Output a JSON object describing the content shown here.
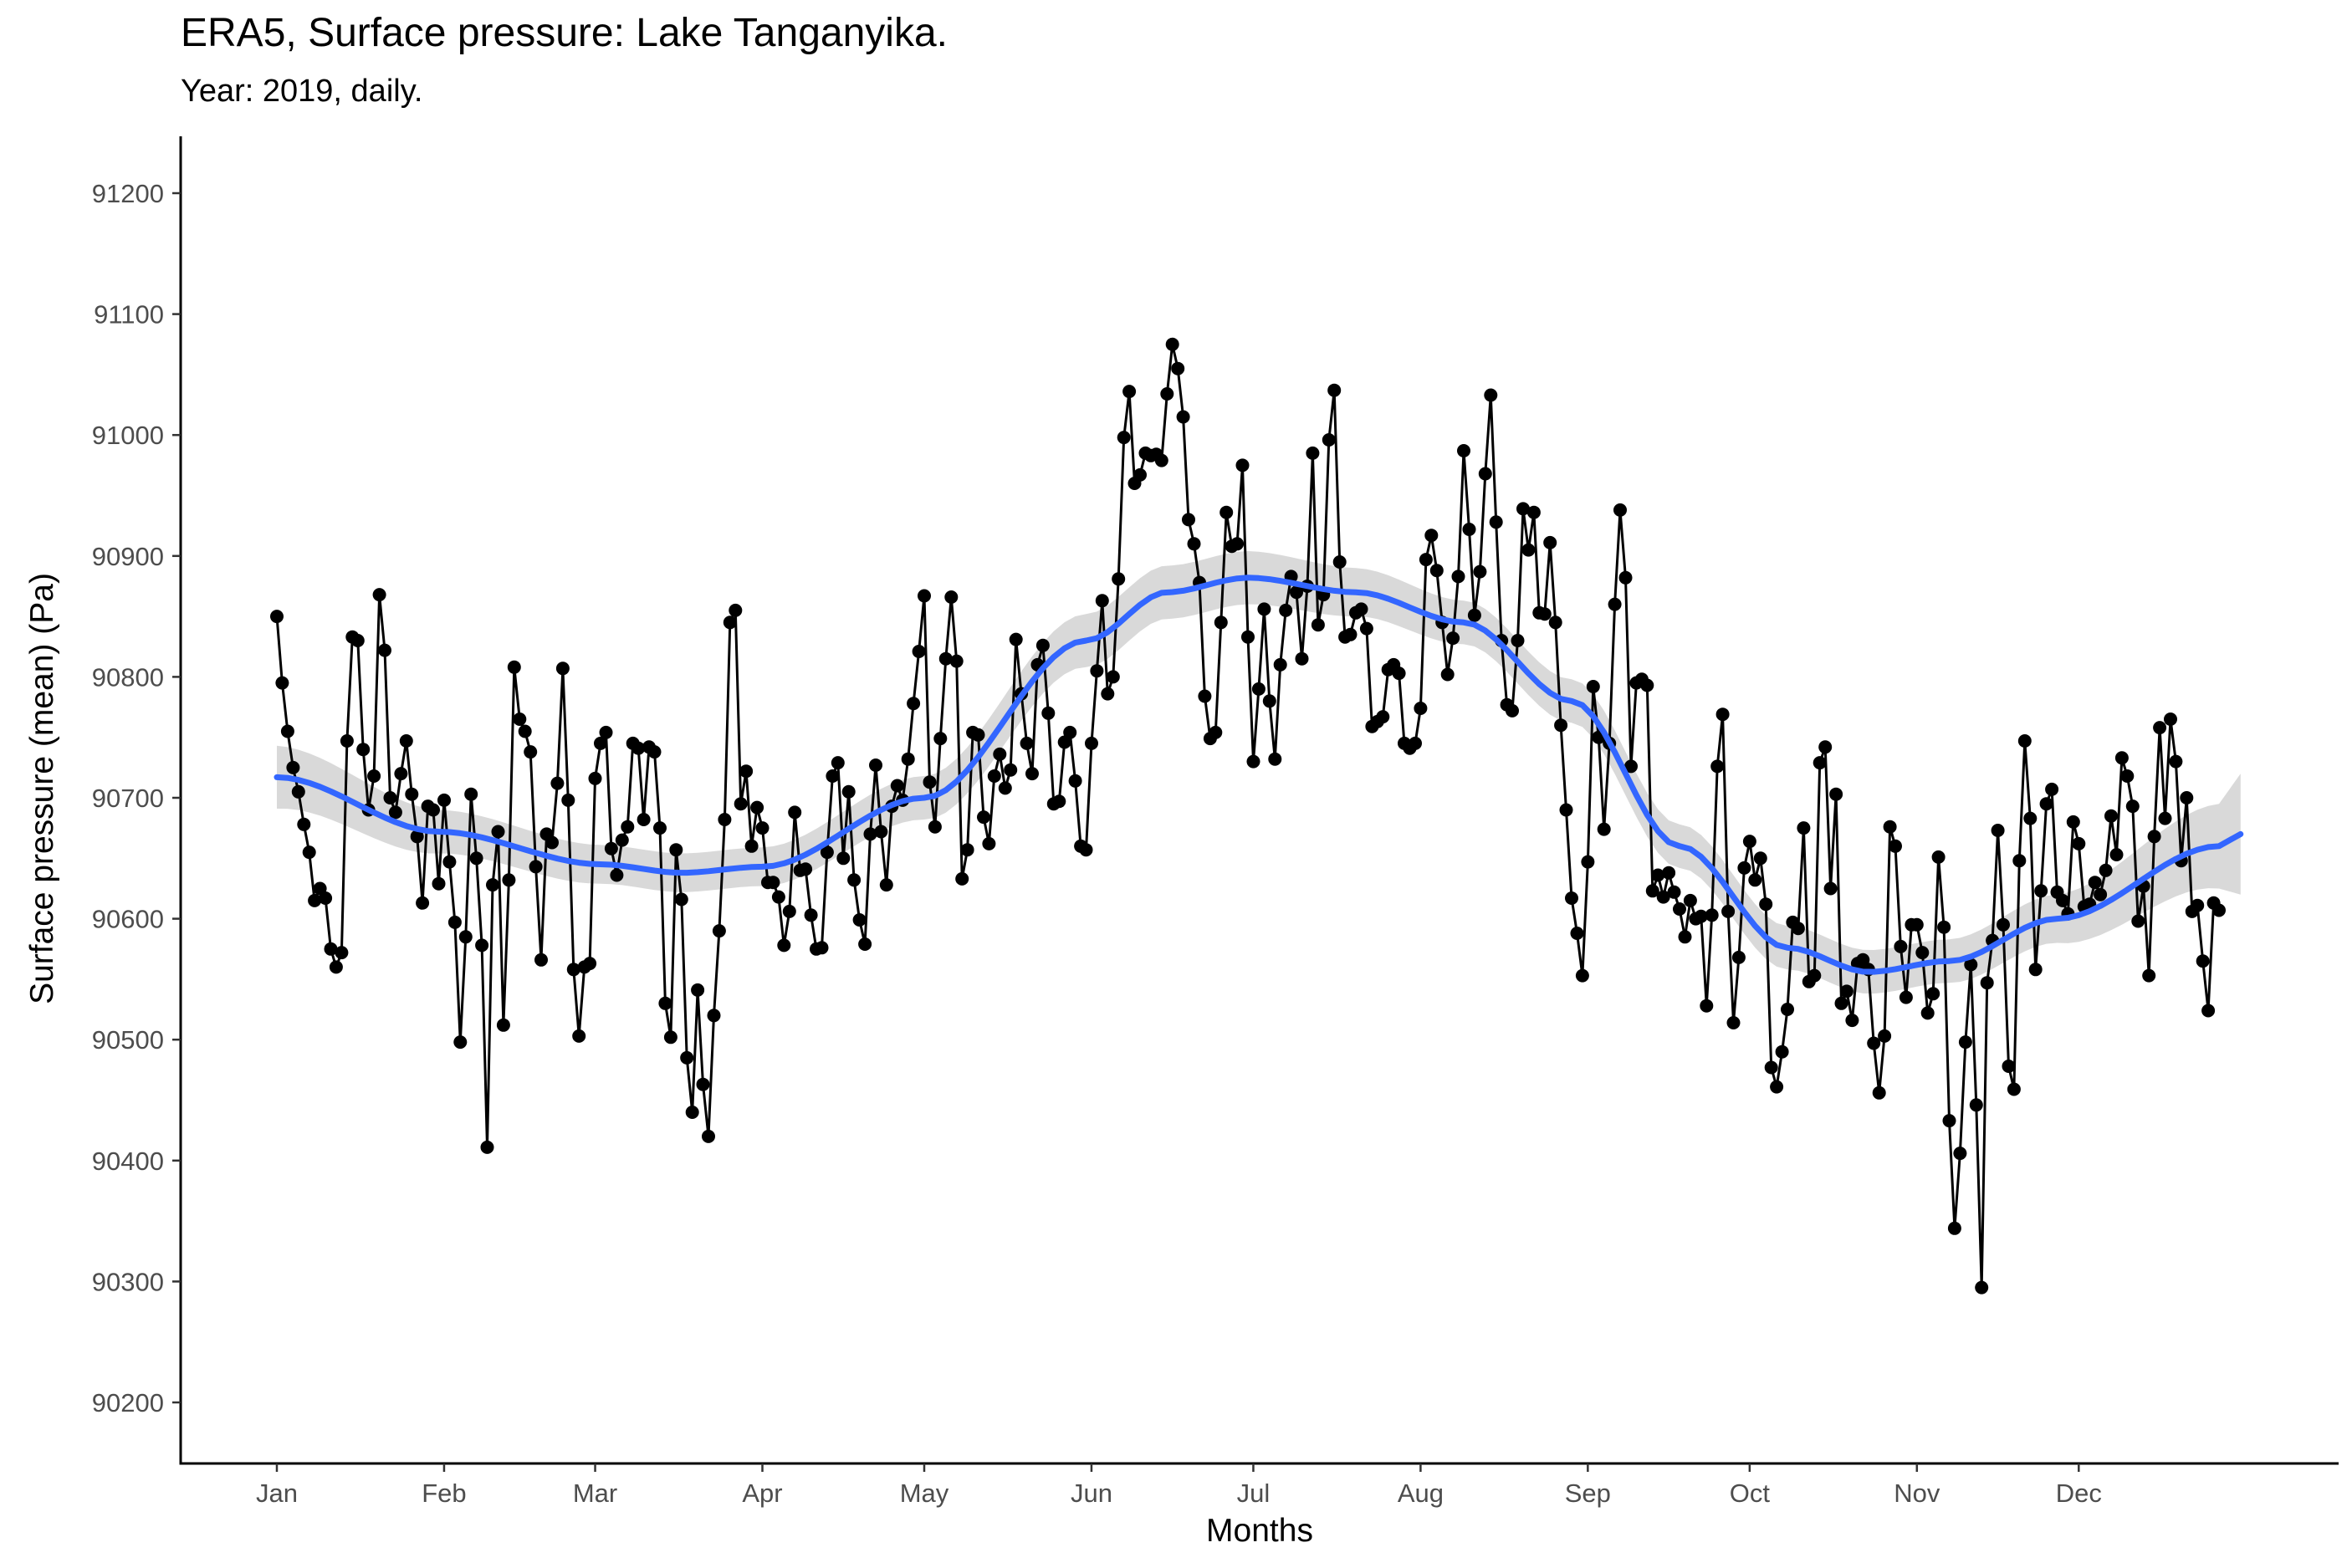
{
  "chart_data": {
    "type": "line",
    "title": "ERA5, Surface pressure: Lake Tanganyika.",
    "subtitle": "Year: 2019, daily.",
    "xlabel": "Months",
    "ylabel": "Surface pressure (mean) (Pa)",
    "x_ticks": [
      "Jan",
      "Feb",
      "Mar",
      "Apr",
      "May",
      "Jun",
      "Jul",
      "Aug",
      "Sep",
      "Oct",
      "Nov",
      "Dec"
    ],
    "y_ticks": [
      90200,
      90300,
      90400,
      90500,
      90600,
      90700,
      90800,
      90900,
      91000,
      91100,
      91200
    ],
    "xlim": [
      "2018-12-26",
      "2020-01-03"
    ],
    "ylim": [
      90150,
      91250
    ],
    "grid": false,
    "legend": "none",
    "colors": {
      "series": "#000000",
      "smooth": "#3366ff",
      "band": "#d9d9d9"
    },
    "series": [
      {
        "values": [
          90850,
          90795,
          90755,
          90725,
          90705,
          90678,
          90655,
          90615,
          90625,
          90617,
          90575,
          90560,
          90572,
          90747,
          90833,
          90830,
          90740,
          90690,
          90718,
          90868,
          90822,
          90700,
          90688,
          90720,
          90747,
          90703,
          90668,
          90613,
          90693,
          90690,
          90629,
          90698,
          90647,
          90597,
          90498,
          90585,
          90703,
          90650,
          90578,
          90411,
          90628,
          90672,
          90512,
          90632,
          90808,
          90765,
          90755,
          90738,
          90643,
          90566,
          90670,
          90663,
          90712,
          90807,
          90698,
          90558,
          90503,
          90560,
          90563,
          90716,
          90745,
          90754,
          90658,
          90636,
          90665,
          90676,
          90745,
          90741,
          90682,
          90742,
          90738,
          90675,
          90530,
          90502,
          90657,
          90616,
          90485,
          90440,
          90541,
          90463,
          90420,
          90520,
          90590,
          90682,
          90845,
          90855,
          90695,
          90722,
          90660,
          90692,
          90675,
          90630,
          90630,
          90618,
          90578,
          90606,
          90688,
          90640,
          90641,
          90603,
          90575,
          90576,
          90655,
          90718,
          90729,
          90650,
          90705,
          90632,
          90599,
          90579,
          90670,
          90727,
          90672,
          90628,
          90693,
          90710,
          90698,
          90732,
          90778,
          90821,
          90867,
          90713,
          90676,
          90749,
          90815,
          90866,
          90813,
          90633,
          90657,
          90754,
          90752,
          90684,
          90662,
          90718,
          90736,
          90708,
          90723,
          90831,
          90786,
          90745,
          90720,
          90810,
          90826,
          90770,
          90695,
          90697,
          90746,
          90754,
          90714,
          90660,
          90657,
          90745,
          90805,
          90863,
          90786,
          90800,
          90881,
          90998,
          91036,
          90960,
          90967,
          90985,
          90983,
          90984,
          90979,
          91034,
          91075,
          91055,
          91015,
          90930,
          90910,
          90878,
          90784,
          90749,
          90754,
          90845,
          90936,
          90908,
          90910,
          90975,
          90833,
          90730,
          90790,
          90856,
          90780,
          90732,
          90810,
          90855,
          90883,
          90870,
          90815,
          90875,
          90985,
          90843,
          90868,
          90996,
          91037,
          90895,
          90833,
          90835,
          90853,
          90856,
          90840,
          90759,
          90763,
          90767,
          90806,
          90810,
          90803,
          90745,
          90741,
          90745,
          90774,
          90897,
          90917,
          90888,
          90845,
          90802,
          90832,
          90883,
          90987,
          90922,
          90851,
          90887,
          90968,
          91033,
          90928,
          90830,
          90777,
          90772,
          90830,
          90939,
          90905,
          90936,
          90853,
          90852,
          90911,
          90845,
          90760,
          90690,
          90617,
          90588,
          90553,
          90647,
          90792,
          90750,
          90674,
          90745,
          90860,
          90938,
          90882,
          90726,
          90795,
          90798,
          90793,
          90623,
          90636,
          90618,
          90638,
          90622,
          90608,
          90585,
          90615,
          90600,
          90602,
          90528,
          90603,
          90726,
          90769,
          90606,
          90514,
          90568,
          90642,
          90664,
          90632,
          90650,
          90612,
          90477,
          90461,
          90490,
          90525,
          90597,
          90592,
          90675,
          90548,
          90553,
          90729,
          90742,
          90625,
          90703,
          90530,
          90540,
          90516,
          90563,
          90566,
          90558,
          90497,
          90456,
          90503,
          90676,
          90660,
          90577,
          90535,
          90595,
          90595,
          90572,
          90522,
          90538,
          90651,
          90593,
          90433,
          90344,
          90406,
          90498,
          90562,
          90446,
          90295,
          90547,
          90582,
          90673,
          90595,
          90478,
          90459,
          90648,
          90747,
          90683,
          90558,
          90623,
          90695,
          90707,
          90622,
          90615,
          90604,
          90680,
          90662,
          90610,
          90612,
          90630,
          90620,
          90640,
          90685,
          90653,
          90733,
          90718,
          90693,
          90598,
          90627,
          90553,
          90668,
          90758,
          90683,
          90765,
          90730,
          90648,
          90700,
          90606,
          90611,
          90565,
          90524,
          90613,
          90607
        ]
      }
    ],
    "smooth_fit": {
      "method": "loess",
      "x_day": [
        0,
        30,
        60,
        75,
        90,
        120,
        150,
        165,
        180,
        200,
        220,
        240,
        260,
        280,
        295,
        310,
        330,
        360,
        364
      ],
      "y": [
        90717,
        90672,
        90645,
        90638,
        90643,
        90700,
        90830,
        90870,
        90882,
        90870,
        90845,
        90780,
        90660,
        90576,
        90556,
        90565,
        90600,
        90660,
        90670
      ],
      "se": [
        26,
        18,
        16,
        16,
        16,
        18,
        22,
        22,
        22,
        20,
        18,
        18,
        18,
        18,
        18,
        18,
        20,
        35,
        50
      ]
    }
  }
}
